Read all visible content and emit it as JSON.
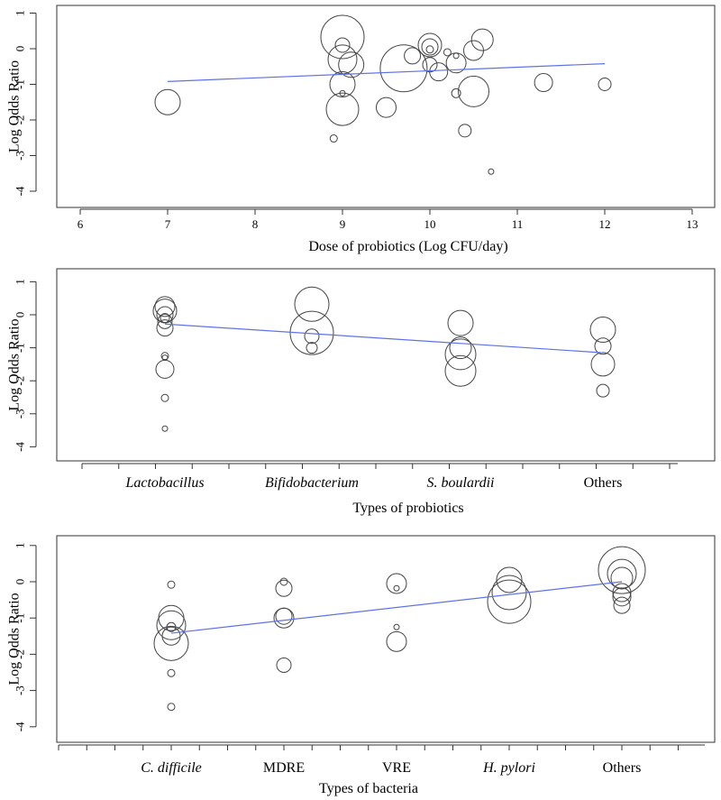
{
  "colors": {
    "fit_line": "#5f72ea",
    "bubble_stroke": "#444444",
    "axis": "#333333"
  },
  "chart_data": [
    {
      "type": "scatter",
      "subtype": "bubble-meta-regression",
      "xlabel": "Dose of probiotics (Log CFU/day)",
      "ylabel": "Log Odds Ratio",
      "xlim": [
        5.7,
        13.3
      ],
      "ylim": [
        -4.3,
        1.2
      ],
      "x_ticks": [
        6,
        7,
        8,
        9,
        10,
        11,
        12,
        13
      ],
      "y_ticks": [
        1,
        0,
        -1,
        -2,
        -3,
        -4
      ],
      "points": [
        {
          "x": 7.0,
          "y": -1.5,
          "w": 14
        },
        {
          "x": 8.9,
          "y": -2.52,
          "w": 4
        },
        {
          "x": 9.0,
          "y": 0.33,
          "w": 24
        },
        {
          "x": 9.0,
          "y": 0.1,
          "w": 8
        },
        {
          "x": 9.0,
          "y": -0.3,
          "w": 16
        },
        {
          "x": 9.0,
          "y": -1.0,
          "w": 14
        },
        {
          "x": 9.0,
          "y": -1.25,
          "w": 3
        },
        {
          "x": 9.0,
          "y": -1.7,
          "w": 18
        },
        {
          "x": 9.1,
          "y": -0.45,
          "w": 14
        },
        {
          "x": 9.5,
          "y": -1.65,
          "w": 11
        },
        {
          "x": 9.8,
          "y": -0.2,
          "w": 9
        },
        {
          "x": 9.7,
          "y": -0.55,
          "w": 26
        },
        {
          "x": 10.0,
          "y": 0.1,
          "w": 13
        },
        {
          "x": 10.0,
          "y": 0.05,
          "w": 9
        },
        {
          "x": 10.0,
          "y": -0.02,
          "w": 4
        },
        {
          "x": 10.0,
          "y": -0.45,
          "w": 8
        },
        {
          "x": 10.1,
          "y": -0.65,
          "w": 10
        },
        {
          "x": 10.2,
          "y": -0.1,
          "w": 4
        },
        {
          "x": 10.3,
          "y": -0.2,
          "w": 3
        },
        {
          "x": 10.3,
          "y": -0.4,
          "w": 11
        },
        {
          "x": 10.3,
          "y": -1.25,
          "w": 5
        },
        {
          "x": 10.4,
          "y": -2.3,
          "w": 7
        },
        {
          "x": 10.5,
          "y": -0.05,
          "w": 11
        },
        {
          "x": 10.5,
          "y": -1.2,
          "w": 17
        },
        {
          "x": 10.6,
          "y": 0.25,
          "w": 12
        },
        {
          "x": 10.7,
          "y": -3.45,
          "w": 3
        },
        {
          "x": 11.3,
          "y": -0.95,
          "w": 10
        },
        {
          "x": 12.0,
          "y": -1.0,
          "w": 7
        }
      ],
      "fit": {
        "x1": 7.0,
        "y1": -0.92,
        "x2": 12.0,
        "y2": -0.42
      }
    },
    {
      "type": "scatter",
      "subtype": "bubble-meta-regression",
      "xlabel": "Types of probiotics",
      "ylabel": "Log Odds Ratio",
      "categories": [
        "Lactobacillus",
        "Bifidobacterium",
        "S. boulardii",
        "Others"
      ],
      "category_italic": [
        true,
        true,
        true,
        false
      ],
      "ylim": [
        -4.4,
        1.2
      ],
      "y_ticks": [
        1,
        0,
        -1,
        -2,
        -3,
        -4
      ],
      "points": [
        {
          "x": 0,
          "y": 0.25,
          "w": 11
        },
        {
          "x": 0,
          "y": 0.12,
          "w": 13
        },
        {
          "x": 0,
          "y": 0.0,
          "w": 9
        },
        {
          "x": 0,
          "y": -0.1,
          "w": 5
        },
        {
          "x": 0,
          "y": -0.2,
          "w": 8
        },
        {
          "x": 0,
          "y": -0.4,
          "w": 9
        },
        {
          "x": 0,
          "y": -1.25,
          "w": 4
        },
        {
          "x": 0,
          "y": -1.3,
          "w": 3
        },
        {
          "x": 0,
          "y": -1.65,
          "w": 10
        },
        {
          "x": 0,
          "y": -2.52,
          "w": 4
        },
        {
          "x": 0,
          "y": -3.45,
          "w": 3
        },
        {
          "x": 1,
          "y": 0.32,
          "w": 19
        },
        {
          "x": 1,
          "y": -0.55,
          "w": 24
        },
        {
          "x": 1,
          "y": -0.65,
          "w": 8
        },
        {
          "x": 1,
          "y": -1.0,
          "w": 6
        },
        {
          "x": 2,
          "y": -0.25,
          "w": 14
        },
        {
          "x": 2,
          "y": -1.0,
          "w": 12
        },
        {
          "x": 2,
          "y": -1.2,
          "w": 17
        },
        {
          "x": 2,
          "y": -1.7,
          "w": 17
        },
        {
          "x": 3,
          "y": -0.45,
          "w": 14
        },
        {
          "x": 3,
          "y": -0.95,
          "w": 9
        },
        {
          "x": 3,
          "y": -1.5,
          "w": 13
        },
        {
          "x": 3,
          "y": -2.3,
          "w": 7
        }
      ],
      "fit": {
        "x1": 0,
        "y1": -0.28,
        "x2": 3,
        "y2": -1.15
      }
    },
    {
      "type": "scatter",
      "subtype": "bubble-meta-regression",
      "xlabel": "Types of bacteria",
      "ylabel": "Log Odds Ratio",
      "categories": [
        "C. difficile",
        "MDRE",
        "VRE",
        "H. pylori",
        "Others"
      ],
      "category_italic": [
        true,
        false,
        false,
        true,
        false
      ],
      "ylim": [
        -4.4,
        1.2
      ],
      "y_ticks": [
        1,
        0,
        -1,
        -2,
        -3,
        -4
      ],
      "points": [
        {
          "x": 0,
          "y": -0.08,
          "w": 4
        },
        {
          "x": 0,
          "y": -1.0,
          "w": 14
        },
        {
          "x": 0,
          "y": -1.2,
          "w": 16
        },
        {
          "x": 0,
          "y": -1.25,
          "w": 5
        },
        {
          "x": 0,
          "y": -1.5,
          "w": 10
        },
        {
          "x": 0,
          "y": -1.7,
          "w": 19
        },
        {
          "x": 0,
          "y": -2.52,
          "w": 4
        },
        {
          "x": 0,
          "y": -3.45,
          "w": 4
        },
        {
          "x": 1,
          "y": 0.0,
          "w": 4
        },
        {
          "x": 1,
          "y": -0.18,
          "w": 9
        },
        {
          "x": 1,
          "y": -0.95,
          "w": 9
        },
        {
          "x": 1,
          "y": -1.0,
          "w": 11
        },
        {
          "x": 1,
          "y": -2.3,
          "w": 8
        },
        {
          "x": 2,
          "y": -0.05,
          "w": 11
        },
        {
          "x": 2,
          "y": -0.18,
          "w": 3
        },
        {
          "x": 2,
          "y": -1.25,
          "w": 3
        },
        {
          "x": 2,
          "y": -1.65,
          "w": 11
        },
        {
          "x": 3,
          "y": 0.05,
          "w": 14
        },
        {
          "x": 3,
          "y": -0.3,
          "w": 19
        },
        {
          "x": 3,
          "y": -0.55,
          "w": 24
        },
        {
          "x": 4,
          "y": 0.32,
          "w": 26
        },
        {
          "x": 4,
          "y": 0.22,
          "w": 16
        },
        {
          "x": 4,
          "y": 0.1,
          "w": 12
        },
        {
          "x": 4,
          "y": -0.3,
          "w": 10
        },
        {
          "x": 4,
          "y": -0.42,
          "w": 10
        },
        {
          "x": 4,
          "y": -0.65,
          "w": 9
        }
      ],
      "fit": {
        "x1": 0,
        "y1": -1.42,
        "x2": 4,
        "y2": 0.0
      }
    }
  ]
}
